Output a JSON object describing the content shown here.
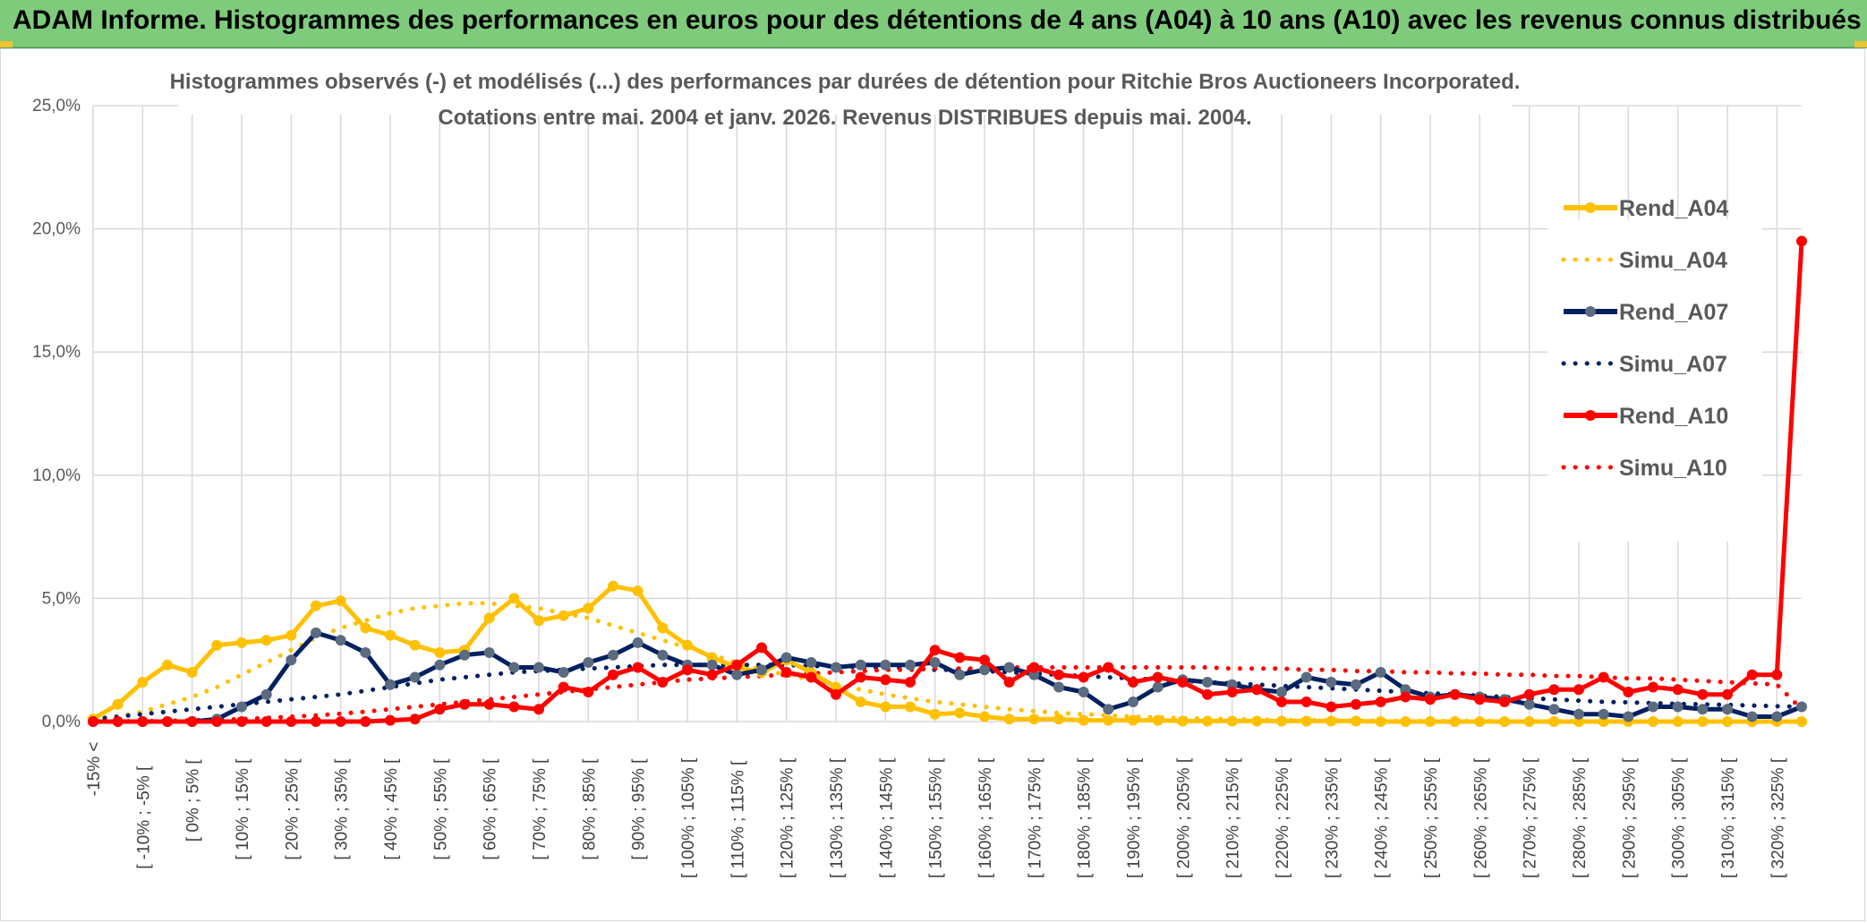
{
  "banner": {
    "title": "ADAM Informe. Histogrammes des performances en euros pour des détentions de 4 ans (A04) à 10 ans (A10) avec les revenus connus distribués"
  },
  "colors": {
    "banner_bg": "#7ecb7c",
    "a04": "#ffc000",
    "a07": "#002060",
    "a07_marker": "#5b6b80",
    "a10": "#ff0000",
    "grid": "#d9d9d9"
  },
  "chart_data": {
    "type": "line",
    "title": "Histogrammes observés (-) et modélisés (...) des performances par durées de détention pour Ritchie Bros Auctioneers Incorporated.",
    "subtitle": "Cotations entre mai. 2004 et janv. 2026. Revenus DISTRIBUES depuis mai. 2004.",
    "xlabel": "",
    "ylabel": "",
    "ylim": [
      0,
      25
    ],
    "y_ticks": [
      "0,0%",
      "5,0%",
      "10,0%",
      "15,0%",
      "20,0%",
      "25,0%"
    ],
    "grid": true,
    "legend_position": "right",
    "x_tick_labels": [
      "-15% <",
      "[ -10% ; -5% [",
      "[ 0% ; 5% [",
      "[ 10% ; 15% [",
      "[ 20% ; 25% [",
      "[ 30% ; 35% [",
      "[ 40% ; 45% [",
      "[ 50% ; 55% [",
      "[ 60% ; 65% [",
      "[ 70% ; 75% [",
      "[ 80% ; 85% [",
      "[ 90% ; 95% [",
      "[ 100% ; 105% [",
      "[ 110% ; 115% [",
      "[ 120% ; 125% [",
      "[ 130% ; 135% [",
      "[ 140% ; 145% [",
      "[ 150% ; 155% [",
      "[ 160% ; 165% [",
      "[ 170% ; 175% [",
      "[ 180% ; 185% [",
      "[ 190% ; 195% [",
      "[ 200% ; 205% [",
      "[ 210% ; 215% [",
      "[ 220% ; 225% [",
      "[ 230% ; 235% [",
      "[ 240% ; 245% [",
      "[ 250% ; 255% [",
      "[ 260% ; 265% [",
      "[ 270% ; 275% [",
      "[ 280% ; 285% [",
      "[ 290% ; 295% [",
      "[ 300% ; 305% [",
      "[ 310% ; 315% [",
      "[ 320% ; 325% ["
    ],
    "point_count": 70,
    "series": [
      {
        "name": "Rend_A04",
        "style": "solid",
        "color": "#ffc000",
        "values": [
          0.1,
          0.7,
          1.6,
          2.3,
          2.0,
          3.1,
          3.2,
          3.3,
          3.5,
          4.7,
          4.9,
          3.8,
          3.5,
          3.1,
          2.8,
          2.9,
          4.2,
          5.0,
          4.1,
          4.3,
          4.6,
          5.5,
          5.3,
          3.8,
          3.1,
          2.6,
          2.2,
          2.0,
          2.5,
          2.0,
          1.4,
          0.8,
          0.6,
          0.6,
          0.3,
          0.35,
          0.2,
          0.1,
          0.1,
          0.1,
          0.05,
          0.05,
          0.05,
          0.05,
          0.02,
          0.02,
          0.02,
          0.02,
          0.02,
          0.02,
          0.02,
          0.02,
          0.0,
          0.0,
          0.0,
          0.0,
          0.0,
          0.0,
          0.0,
          0.0,
          0.0,
          0.0,
          0.0,
          0.0,
          0.0,
          0.0,
          0.0,
          0.0,
          0.0,
          0.0
        ]
      },
      {
        "name": "Simu_A04",
        "style": "dotted",
        "color": "#ffc000",
        "values": [
          0.1,
          0.2,
          0.4,
          0.7,
          1.0,
          1.4,
          1.9,
          2.4,
          2.9,
          3.4,
          3.8,
          4.1,
          4.4,
          4.6,
          4.7,
          4.8,
          4.8,
          4.7,
          4.6,
          4.4,
          4.2,
          3.9,
          3.6,
          3.3,
          3.0,
          2.7,
          2.4,
          2.1,
          1.9,
          1.7,
          1.5,
          1.3,
          1.1,
          0.95,
          0.8,
          0.7,
          0.6,
          0.5,
          0.42,
          0.35,
          0.3,
          0.25,
          0.2,
          0.17,
          0.14,
          0.12,
          0.1,
          0.08,
          0.07,
          0.06,
          0.05,
          0.04,
          0.03,
          0.03,
          0.02,
          0.02,
          0.02,
          0.01,
          0.01,
          0.01,
          0.01,
          0.01,
          0.01,
          0.0,
          0.0,
          0.0,
          0.0,
          0.0,
          0.0,
          0.0
        ]
      },
      {
        "name": "Rend_A07",
        "style": "solid",
        "color": "#002060",
        "values": [
          0.0,
          0.0,
          0.0,
          0.0,
          0.0,
          0.1,
          0.6,
          1.1,
          2.5,
          3.6,
          3.3,
          2.8,
          1.5,
          1.8,
          2.3,
          2.7,
          2.8,
          2.2,
          2.2,
          2.0,
          2.4,
          2.7,
          3.2,
          2.7,
          2.3,
          2.3,
          1.9,
          2.1,
          2.6,
          2.4,
          2.2,
          2.3,
          2.3,
          2.3,
          2.4,
          1.9,
          2.1,
          2.2,
          1.9,
          1.4,
          1.2,
          0.5,
          0.8,
          1.4,
          1.7,
          1.6,
          1.5,
          1.3,
          1.2,
          1.8,
          1.6,
          1.5,
          2.0,
          1.3,
          1.0,
          1.1,
          1.0,
          0.9,
          0.7,
          0.5,
          0.3,
          0.3,
          0.2,
          0.6,
          0.6,
          0.5,
          0.5,
          0.2,
          0.2,
          0.6
        ]
      },
      {
        "name": "Simu_A07",
        "style": "dotted",
        "color": "#002060",
        "values": [
          0.1,
          0.2,
          0.3,
          0.4,
          0.5,
          0.6,
          0.7,
          0.8,
          0.9,
          1.0,
          1.1,
          1.25,
          1.4,
          1.55,
          1.7,
          1.8,
          1.9,
          2.0,
          2.05,
          2.1,
          2.15,
          2.2,
          2.25,
          2.3,
          2.3,
          2.3,
          2.3,
          2.3,
          2.3,
          2.25,
          2.25,
          2.2,
          2.2,
          2.15,
          2.1,
          2.1,
          2.05,
          2.0,
          1.95,
          1.9,
          1.85,
          1.8,
          1.75,
          1.7,
          1.65,
          1.6,
          1.55,
          1.5,
          1.45,
          1.4,
          1.35,
          1.3,
          1.25,
          1.2,
          1.15,
          1.1,
          1.05,
          1.0,
          0.95,
          0.9,
          0.85,
          0.8,
          0.78,
          0.75,
          0.72,
          0.7,
          0.68,
          0.65,
          0.62,
          0.6
        ]
      },
      {
        "name": "Rend_A10",
        "style": "solid",
        "color": "#ff0000",
        "values": [
          0.0,
          0.0,
          0.0,
          0.0,
          0.0,
          0.0,
          0.0,
          0.0,
          0.0,
          0.0,
          0.0,
          0.0,
          0.05,
          0.1,
          0.5,
          0.7,
          0.7,
          0.6,
          0.5,
          1.4,
          1.2,
          1.9,
          2.2,
          1.6,
          2.1,
          1.9,
          2.3,
          3.0,
          2.0,
          1.8,
          1.1,
          1.8,
          1.7,
          1.6,
          2.9,
          2.6,
          2.5,
          1.6,
          2.2,
          1.9,
          1.8,
          2.2,
          1.6,
          1.8,
          1.6,
          1.1,
          1.2,
          1.3,
          0.8,
          0.8,
          0.6,
          0.7,
          0.8,
          1.0,
          0.9,
          1.1,
          0.9,
          0.8,
          1.1,
          1.3,
          1.3,
          1.8,
          1.2,
          1.4,
          1.3,
          1.1,
          1.1,
          1.9,
          1.9,
          19.5
        ]
      },
      {
        "name": "Simu_A10",
        "style": "dotted",
        "color": "#ff0000",
        "values": [
          0.0,
          0.01,
          0.02,
          0.03,
          0.05,
          0.07,
          0.1,
          0.15,
          0.2,
          0.25,
          0.32,
          0.4,
          0.5,
          0.6,
          0.7,
          0.8,
          0.9,
          1.0,
          1.1,
          1.2,
          1.3,
          1.4,
          1.5,
          1.6,
          1.7,
          1.75,
          1.8,
          1.85,
          1.9,
          1.95,
          2.0,
          2.05,
          2.1,
          2.1,
          2.15,
          2.15,
          2.15,
          2.2,
          2.2,
          2.2,
          2.2,
          2.2,
          2.2,
          2.2,
          2.2,
          2.2,
          2.15,
          2.15,
          2.15,
          2.1,
          2.1,
          2.05,
          2.05,
          2.0,
          2.0,
          1.95,
          1.95,
          1.9,
          1.9,
          1.85,
          1.85,
          1.8,
          1.75,
          1.75,
          1.7,
          1.65,
          1.6,
          1.55,
          1.5,
          0.5
        ]
      }
    ]
  }
}
